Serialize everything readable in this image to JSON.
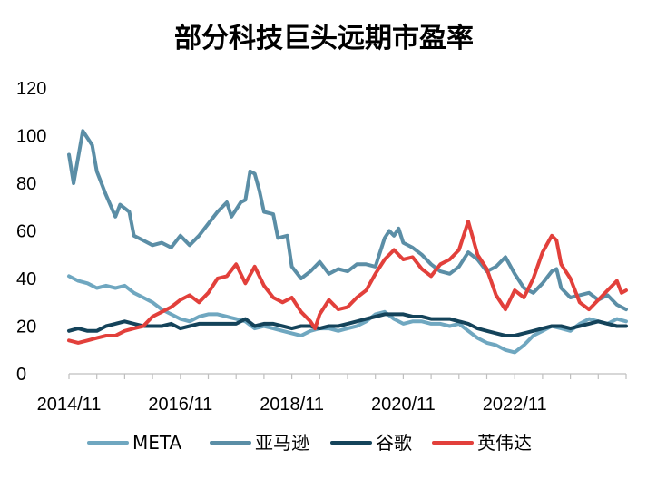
{
  "chart_data": {
    "type": "line",
    "title": "部分科技巨头远期市盈率",
    "xlabel": "",
    "ylabel": "",
    "ylim": [
      0,
      120
    ],
    "yticks": [
      0,
      20,
      40,
      60,
      80,
      100,
      120
    ],
    "xlim": [
      "2014/11",
      "2024/11"
    ],
    "xticks": [
      "2014/11",
      "2016/11",
      "2018/11",
      "2020/11",
      "2022/11"
    ],
    "grid": false,
    "legend": "bottom",
    "series": [
      {
        "name": "META",
        "color": "#6fa7c0",
        "points": [
          [
            "2014/11",
            41
          ],
          [
            "2015/01",
            39
          ],
          [
            "2015/03",
            38
          ],
          [
            "2015/05",
            36
          ],
          [
            "2015/07",
            37
          ],
          [
            "2015/09",
            36
          ],
          [
            "2015/11",
            37
          ],
          [
            "2016/01",
            34
          ],
          [
            "2016/03",
            32
          ],
          [
            "2016/05",
            30
          ],
          [
            "2016/07",
            27
          ],
          [
            "2016/09",
            25
          ],
          [
            "2016/11",
            23
          ],
          [
            "2017/01",
            22
          ],
          [
            "2017/03",
            24
          ],
          [
            "2017/05",
            25
          ],
          [
            "2017/07",
            25
          ],
          [
            "2017/09",
            24
          ],
          [
            "2017/11",
            23
          ],
          [
            "2018/01",
            22
          ],
          [
            "2018/03",
            19
          ],
          [
            "2018/05",
            20
          ],
          [
            "2018/07",
            19
          ],
          [
            "2018/09",
            18
          ],
          [
            "2018/11",
            17
          ],
          [
            "2019/01",
            16
          ],
          [
            "2019/03",
            18
          ],
          [
            "2019/05",
            19
          ],
          [
            "2019/07",
            19
          ],
          [
            "2019/09",
            18
          ],
          [
            "2019/11",
            19
          ],
          [
            "2020/01",
            20
          ],
          [
            "2020/03",
            22
          ],
          [
            "2020/05",
            25
          ],
          [
            "2020/07",
            26
          ],
          [
            "2020/09",
            23
          ],
          [
            "2020/11",
            21
          ],
          [
            "2021/01",
            22
          ],
          [
            "2021/03",
            22
          ],
          [
            "2021/05",
            21
          ],
          [
            "2021/07",
            21
          ],
          [
            "2021/09",
            20
          ],
          [
            "2021/11",
            21
          ],
          [
            "2022/01",
            18
          ],
          [
            "2022/03",
            15
          ],
          [
            "2022/05",
            13
          ],
          [
            "2022/07",
            12
          ],
          [
            "2022/09",
            10
          ],
          [
            "2022/11",
            9
          ],
          [
            "2023/01",
            12
          ],
          [
            "2023/03",
            16
          ],
          [
            "2023/05",
            18
          ],
          [
            "2023/07",
            20
          ],
          [
            "2023/09",
            19
          ],
          [
            "2023/11",
            18
          ],
          [
            "2024/01",
            21
          ],
          [
            "2024/03",
            23
          ],
          [
            "2024/05",
            22
          ],
          [
            "2024/07",
            21
          ],
          [
            "2024/09",
            23
          ],
          [
            "2024/11",
            22
          ]
        ]
      },
      {
        "name": "亚马逊",
        "color": "#5b8ea6",
        "points": [
          [
            "2014/11",
            92
          ],
          [
            "2014/12",
            80
          ],
          [
            "2015/02",
            102
          ],
          [
            "2015/04",
            96
          ],
          [
            "2015/05",
            85
          ],
          [
            "2015/07",
            75
          ],
          [
            "2015/09",
            66
          ],
          [
            "2015/10",
            71
          ],
          [
            "2015/12",
            68
          ],
          [
            "2016/01",
            58
          ],
          [
            "2016/03",
            56
          ],
          [
            "2016/05",
            54
          ],
          [
            "2016/07",
            55
          ],
          [
            "2016/09",
            53
          ],
          [
            "2016/11",
            58
          ],
          [
            "2017/01",
            54
          ],
          [
            "2017/03",
            58
          ],
          [
            "2017/05",
            63
          ],
          [
            "2017/07",
            68
          ],
          [
            "2017/09",
            72
          ],
          [
            "2017/10",
            66
          ],
          [
            "2017/12",
            72
          ],
          [
            "2018/01",
            73
          ],
          [
            "2018/02",
            85
          ],
          [
            "2018/03",
            84
          ],
          [
            "2018/04",
            77
          ],
          [
            "2018/05",
            68
          ],
          [
            "2018/07",
            67
          ],
          [
            "2018/08",
            57
          ],
          [
            "2018/10",
            58
          ],
          [
            "2018/11",
            45
          ],
          [
            "2019/01",
            40
          ],
          [
            "2019/03",
            43
          ],
          [
            "2019/05",
            47
          ],
          [
            "2019/07",
            42
          ],
          [
            "2019/09",
            44
          ],
          [
            "2019/11",
            43
          ],
          [
            "2020/01",
            46
          ],
          [
            "2020/03",
            46
          ],
          [
            "2020/05",
            45
          ],
          [
            "2020/07",
            57
          ],
          [
            "2020/08",
            60
          ],
          [
            "2020/09",
            58
          ],
          [
            "2020/10",
            61
          ],
          [
            "2020/11",
            55
          ],
          [
            "2021/01",
            53
          ],
          [
            "2021/03",
            50
          ],
          [
            "2021/05",
            46
          ],
          [
            "2021/07",
            43
          ],
          [
            "2021/09",
            42
          ],
          [
            "2021/11",
            45
          ],
          [
            "2022/01",
            51
          ],
          [
            "2022/03",
            48
          ],
          [
            "2022/05",
            43
          ],
          [
            "2022/07",
            45
          ],
          [
            "2022/09",
            49
          ],
          [
            "2022/11",
            42
          ],
          [
            "2023/01",
            36
          ],
          [
            "2023/03",
            34
          ],
          [
            "2023/05",
            38
          ],
          [
            "2023/07",
            43
          ],
          [
            "2023/08",
            44
          ],
          [
            "2023/09",
            36
          ],
          [
            "2023/11",
            32
          ],
          [
            "2024/01",
            33
          ],
          [
            "2024/03",
            34
          ],
          [
            "2024/05",
            31
          ],
          [
            "2024/07",
            33
          ],
          [
            "2024/09",
            29
          ],
          [
            "2024/11",
            27
          ]
        ]
      },
      {
        "name": "谷歌",
        "color": "#14435a",
        "points": [
          [
            "2014/11",
            18
          ],
          [
            "2015/01",
            19
          ],
          [
            "2015/03",
            18
          ],
          [
            "2015/05",
            18
          ],
          [
            "2015/07",
            20
          ],
          [
            "2015/09",
            21
          ],
          [
            "2015/11",
            22
          ],
          [
            "2016/01",
            21
          ],
          [
            "2016/03",
            20
          ],
          [
            "2016/05",
            20
          ],
          [
            "2016/07",
            20
          ],
          [
            "2016/09",
            21
          ],
          [
            "2016/11",
            19
          ],
          [
            "2017/01",
            20
          ],
          [
            "2017/03",
            21
          ],
          [
            "2017/05",
            21
          ],
          [
            "2017/07",
            21
          ],
          [
            "2017/09",
            21
          ],
          [
            "2017/11",
            21
          ],
          [
            "2018/01",
            23
          ],
          [
            "2018/03",
            20
          ],
          [
            "2018/05",
            21
          ],
          [
            "2018/07",
            21
          ],
          [
            "2018/09",
            20
          ],
          [
            "2018/11",
            19
          ],
          [
            "2019/01",
            20
          ],
          [
            "2019/03",
            20
          ],
          [
            "2019/05",
            19
          ],
          [
            "2019/07",
            20
          ],
          [
            "2019/09",
            20
          ],
          [
            "2019/11",
            21
          ],
          [
            "2020/01",
            22
          ],
          [
            "2020/03",
            23
          ],
          [
            "2020/05",
            24
          ],
          [
            "2020/07",
            25
          ],
          [
            "2020/09",
            25
          ],
          [
            "2020/11",
            25
          ],
          [
            "2021/01",
            24
          ],
          [
            "2021/03",
            24
          ],
          [
            "2021/05",
            23
          ],
          [
            "2021/07",
            23
          ],
          [
            "2021/09",
            23
          ],
          [
            "2021/11",
            22
          ],
          [
            "2022/01",
            21
          ],
          [
            "2022/03",
            19
          ],
          [
            "2022/05",
            18
          ],
          [
            "2022/07",
            17
          ],
          [
            "2022/09",
            16
          ],
          [
            "2022/11",
            16
          ],
          [
            "2023/01",
            17
          ],
          [
            "2023/03",
            18
          ],
          [
            "2023/05",
            19
          ],
          [
            "2023/07",
            20
          ],
          [
            "2023/09",
            20
          ],
          [
            "2023/11",
            19
          ],
          [
            "2024/01",
            20
          ],
          [
            "2024/03",
            21
          ],
          [
            "2024/05",
            22
          ],
          [
            "2024/07",
            21
          ],
          [
            "2024/09",
            20
          ],
          [
            "2024/11",
            20
          ]
        ]
      },
      {
        "name": "英伟达",
        "color": "#e2403b",
        "points": [
          [
            "2014/11",
            14
          ],
          [
            "2015/01",
            13
          ],
          [
            "2015/03",
            14
          ],
          [
            "2015/05",
            15
          ],
          [
            "2015/07",
            16
          ],
          [
            "2015/09",
            16
          ],
          [
            "2015/11",
            18
          ],
          [
            "2016/01",
            19
          ],
          [
            "2016/03",
            20
          ],
          [
            "2016/05",
            24
          ],
          [
            "2016/07",
            26
          ],
          [
            "2016/09",
            28
          ],
          [
            "2016/11",
            31
          ],
          [
            "2017/01",
            33
          ],
          [
            "2017/03",
            30
          ],
          [
            "2017/05",
            34
          ],
          [
            "2017/07",
            40
          ],
          [
            "2017/09",
            41
          ],
          [
            "2017/11",
            46
          ],
          [
            "2018/01",
            38
          ],
          [
            "2018/03",
            45
          ],
          [
            "2018/05",
            37
          ],
          [
            "2018/07",
            32
          ],
          [
            "2018/09",
            30
          ],
          [
            "2018/11",
            32
          ],
          [
            "2019/01",
            26
          ],
          [
            "2019/03",
            22
          ],
          [
            "2019/04",
            19
          ],
          [
            "2019/05",
            25
          ],
          [
            "2019/07",
            31
          ],
          [
            "2019/09",
            27
          ],
          [
            "2019/11",
            28
          ],
          [
            "2020/01",
            32
          ],
          [
            "2020/03",
            35
          ],
          [
            "2020/05",
            42
          ],
          [
            "2020/07",
            48
          ],
          [
            "2020/09",
            52
          ],
          [
            "2020/11",
            48
          ],
          [
            "2021/01",
            49
          ],
          [
            "2021/03",
            44
          ],
          [
            "2021/05",
            41
          ],
          [
            "2021/07",
            46
          ],
          [
            "2021/09",
            48
          ],
          [
            "2021/11",
            52
          ],
          [
            "2022/01",
            64
          ],
          [
            "2022/03",
            50
          ],
          [
            "2022/05",
            44
          ],
          [
            "2022/07",
            33
          ],
          [
            "2022/09",
            27
          ],
          [
            "2022/11",
            35
          ],
          [
            "2023/01",
            32
          ],
          [
            "2023/03",
            40
          ],
          [
            "2023/05",
            51
          ],
          [
            "2023/07",
            58
          ],
          [
            "2023/08",
            56
          ],
          [
            "2023/09",
            46
          ],
          [
            "2023/11",
            40
          ],
          [
            "2024/01",
            30
          ],
          [
            "2024/03",
            27
          ],
          [
            "2024/05",
            31
          ],
          [
            "2024/07",
            35
          ],
          [
            "2024/09",
            39
          ],
          [
            "2024/10",
            34
          ],
          [
            "2024/11",
            35
          ]
        ]
      }
    ]
  }
}
